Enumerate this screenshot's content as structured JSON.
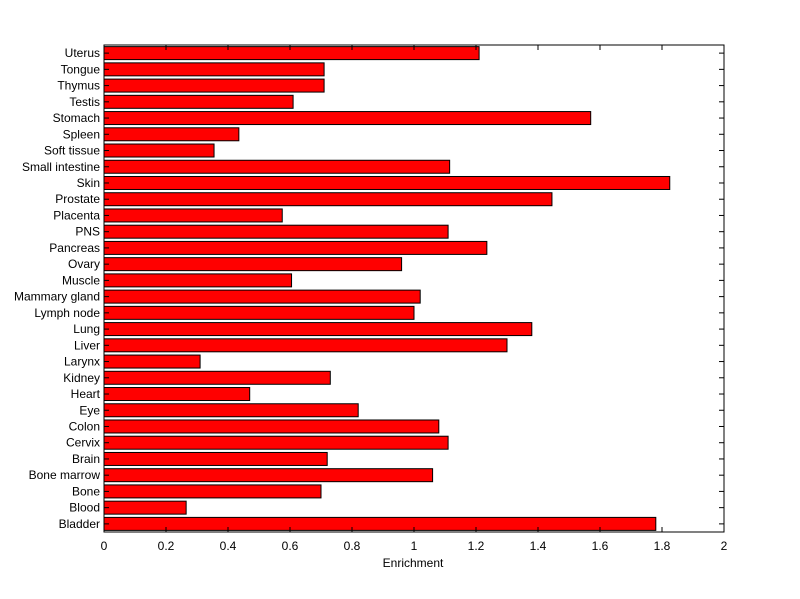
{
  "chart_data": {
    "type": "bar",
    "orientation": "horizontal",
    "title": "",
    "xlabel": "Enrichment",
    "ylabel": "",
    "xlim": [
      0,
      2
    ],
    "xticks": [
      "0",
      "0.2",
      "0.4",
      "0.6",
      "0.8",
      "1",
      "1.2",
      "1.4",
      "1.6",
      "1.8",
      "2"
    ],
    "grid": false,
    "legend": "none",
    "bar_color": "#ff0000",
    "categories": [
      "Bladder",
      "Blood",
      "Bone",
      "Bone marrow",
      "Brain",
      "Cervix",
      "Colon",
      "Eye",
      "Heart",
      "Kidney",
      "Larynx",
      "Liver",
      "Lung",
      "Lymph node",
      "Mammary gland",
      "Muscle",
      "Ovary",
      "Pancreas",
      "PNS",
      "Placenta",
      "Prostate",
      "Skin",
      "Small intestine",
      "Soft tissue",
      "Spleen",
      "Stomach",
      "Testis",
      "Thymus",
      "Tongue",
      "Uterus"
    ],
    "values": [
      1.78,
      0.265,
      0.7,
      1.06,
      0.72,
      1.11,
      1.08,
      0.82,
      0.47,
      0.73,
      0.31,
      1.3,
      1.38,
      1.0,
      1.02,
      0.605,
      0.96,
      1.235,
      1.11,
      0.575,
      1.445,
      1.825,
      1.115,
      0.355,
      0.435,
      1.57,
      0.61,
      0.71,
      0.71,
      1.21
    ]
  }
}
